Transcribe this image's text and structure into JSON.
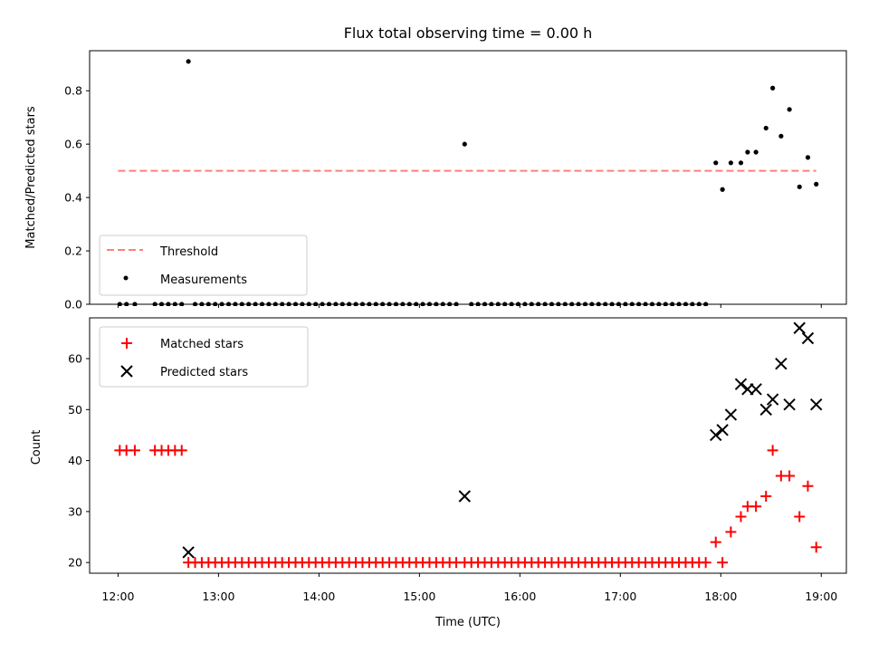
{
  "chart_data": [
    {
      "type": "scatter",
      "title": "Flux total observing time = 0.00 h",
      "xlabel": "",
      "ylabel": "Matched/Predicted stars",
      "xlim": [
        "11:43",
        "19:15"
      ],
      "ylim": [
        0,
        0.95
      ],
      "yticks": [
        0.0,
        0.2,
        0.4,
        0.6,
        0.8
      ],
      "ytick_labels": [
        "0.0",
        "0.2",
        "0.4",
        "0.6",
        "0.8"
      ],
      "xticks": [
        "12:00",
        "13:00",
        "14:00",
        "15:00",
        "16:00",
        "17:00",
        "18:00",
        "19:00"
      ],
      "legend": {
        "position": "lower-left"
      },
      "series": [
        {
          "name": "Threshold",
          "kind": "dashed-line",
          "color": "#ff7f7f",
          "x": [
            "12:00",
            "18:57"
          ],
          "y": [
            0.5,
            0.5
          ]
        },
        {
          "name": "Measurements",
          "kind": "dots",
          "color": "#000000",
          "points": [
            [
              "12:01",
              0
            ],
            [
              "12:05",
              0
            ],
            [
              "12:10",
              0
            ],
            [
              "12:22",
              0
            ],
            [
              "12:26",
              0
            ],
            [
              "12:30",
              0
            ],
            [
              "12:34",
              0
            ],
            [
              "12:38",
              0
            ],
            [
              "12:42",
              0.91
            ],
            [
              "12:46",
              0
            ],
            [
              "12:50",
              0
            ],
            [
              "12:54",
              0
            ],
            [
              "12:58",
              0
            ],
            [
              "13:02",
              0
            ],
            [
              "13:06",
              0
            ],
            [
              "13:10",
              0
            ],
            [
              "13:14",
              0
            ],
            [
              "13:18",
              0
            ],
            [
              "13:22",
              0
            ],
            [
              "13:26",
              0
            ],
            [
              "13:30",
              0
            ],
            [
              "13:34",
              0
            ],
            [
              "13:38",
              0
            ],
            [
              "13:42",
              0
            ],
            [
              "13:46",
              0
            ],
            [
              "13:50",
              0
            ],
            [
              "13:54",
              0
            ],
            [
              "13:58",
              0
            ],
            [
              "14:02",
              0
            ],
            [
              "14:06",
              0
            ],
            [
              "14:10",
              0
            ],
            [
              "14:14",
              0
            ],
            [
              "14:18",
              0
            ],
            [
              "14:22",
              0
            ],
            [
              "14:26",
              0
            ],
            [
              "14:30",
              0
            ],
            [
              "14:34",
              0
            ],
            [
              "14:38",
              0
            ],
            [
              "14:42",
              0
            ],
            [
              "14:46",
              0
            ],
            [
              "14:50",
              0
            ],
            [
              "14:54",
              0
            ],
            [
              "14:58",
              0
            ],
            [
              "15:02",
              0
            ],
            [
              "15:06",
              0
            ],
            [
              "15:10",
              0
            ],
            [
              "15:14",
              0
            ],
            [
              "15:18",
              0
            ],
            [
              "15:22",
              0
            ],
            [
              "15:27",
              0.6
            ],
            [
              "15:31",
              0
            ],
            [
              "15:35",
              0
            ],
            [
              "15:39",
              0
            ],
            [
              "15:43",
              0
            ],
            [
              "15:47",
              0
            ],
            [
              "15:51",
              0
            ],
            [
              "15:55",
              0
            ],
            [
              "15:59",
              0
            ],
            [
              "16:03",
              0
            ],
            [
              "16:07",
              0
            ],
            [
              "16:11",
              0
            ],
            [
              "16:15",
              0
            ],
            [
              "16:19",
              0
            ],
            [
              "16:23",
              0
            ],
            [
              "16:27",
              0
            ],
            [
              "16:31",
              0
            ],
            [
              "16:35",
              0
            ],
            [
              "16:39",
              0
            ],
            [
              "16:43",
              0
            ],
            [
              "16:47",
              0
            ],
            [
              "16:51",
              0
            ],
            [
              "16:55",
              0
            ],
            [
              "16:59",
              0
            ],
            [
              "17:03",
              0
            ],
            [
              "17:07",
              0
            ],
            [
              "17:11",
              0
            ],
            [
              "17:15",
              0
            ],
            [
              "17:19",
              0
            ],
            [
              "17:23",
              0
            ],
            [
              "17:27",
              0
            ],
            [
              "17:31",
              0
            ],
            [
              "17:35",
              0
            ],
            [
              "17:39",
              0
            ],
            [
              "17:43",
              0
            ],
            [
              "17:47",
              0
            ],
            [
              "17:51",
              0
            ],
            [
              "17:57",
              0.53
            ],
            [
              "18:01",
              0.43
            ],
            [
              "18:06",
              0.53
            ],
            [
              "18:12",
              0.53
            ],
            [
              "18:16",
              0.57
            ],
            [
              "18:21",
              0.57
            ],
            [
              "18:27",
              0.66
            ],
            [
              "18:31",
              0.81
            ],
            [
              "18:36",
              0.63
            ],
            [
              "18:41",
              0.73
            ],
            [
              "18:47",
              0.44
            ],
            [
              "18:52",
              0.55
            ],
            [
              "18:57",
              0.45
            ]
          ]
        }
      ]
    },
    {
      "type": "scatter",
      "title": "",
      "xlabel": "Time (UTC)",
      "ylabel": "Count",
      "xlim": [
        "11:43",
        "19:15"
      ],
      "ylim": [
        17.9,
        68
      ],
      "yticks": [
        20,
        30,
        40,
        50,
        60
      ],
      "ytick_labels": [
        "20",
        "30",
        "40",
        "50",
        "60"
      ],
      "xticks": [
        "12:00",
        "13:00",
        "14:00",
        "15:00",
        "16:00",
        "17:00",
        "18:00",
        "19:00"
      ],
      "legend": {
        "position": "upper-left"
      },
      "series": [
        {
          "name": "Matched stars",
          "kind": "plus",
          "color": "#ff0000",
          "points": [
            [
              "12:01",
              42
            ],
            [
              "12:05",
              42
            ],
            [
              "12:10",
              42
            ],
            [
              "12:22",
              42
            ],
            [
              "12:26",
              42
            ],
            [
              "12:30",
              42
            ],
            [
              "12:34",
              42
            ],
            [
              "12:38",
              42
            ],
            [
              "12:42",
              20
            ],
            [
              "12:46",
              20
            ],
            [
              "12:50",
              20
            ],
            [
              "12:54",
              20
            ],
            [
              "12:58",
              20
            ],
            [
              "13:02",
              20
            ],
            [
              "13:06",
              20
            ],
            [
              "13:10",
              20
            ],
            [
              "13:14",
              20
            ],
            [
              "13:18",
              20
            ],
            [
              "13:22",
              20
            ],
            [
              "13:26",
              20
            ],
            [
              "13:30",
              20
            ],
            [
              "13:34",
              20
            ],
            [
              "13:38",
              20
            ],
            [
              "13:42",
              20
            ],
            [
              "13:46",
              20
            ],
            [
              "13:50",
              20
            ],
            [
              "13:54",
              20
            ],
            [
              "13:58",
              20
            ],
            [
              "14:02",
              20
            ],
            [
              "14:06",
              20
            ],
            [
              "14:10",
              20
            ],
            [
              "14:14",
              20
            ],
            [
              "14:18",
              20
            ],
            [
              "14:22",
              20
            ],
            [
              "14:26",
              20
            ],
            [
              "14:30",
              20
            ],
            [
              "14:34",
              20
            ],
            [
              "14:38",
              20
            ],
            [
              "14:42",
              20
            ],
            [
              "14:46",
              20
            ],
            [
              "14:50",
              20
            ],
            [
              "14:54",
              20
            ],
            [
              "14:58",
              20
            ],
            [
              "15:02",
              20
            ],
            [
              "15:06",
              20
            ],
            [
              "15:10",
              20
            ],
            [
              "15:14",
              20
            ],
            [
              "15:18",
              20
            ],
            [
              "15:22",
              20
            ],
            [
              "15:27",
              20
            ],
            [
              "15:31",
              20
            ],
            [
              "15:35",
              20
            ],
            [
              "15:39",
              20
            ],
            [
              "15:43",
              20
            ],
            [
              "15:47",
              20
            ],
            [
              "15:51",
              20
            ],
            [
              "15:55",
              20
            ],
            [
              "15:59",
              20
            ],
            [
              "16:03",
              20
            ],
            [
              "16:07",
              20
            ],
            [
              "16:11",
              20
            ],
            [
              "16:15",
              20
            ],
            [
              "16:19",
              20
            ],
            [
              "16:23",
              20
            ],
            [
              "16:27",
              20
            ],
            [
              "16:31",
              20
            ],
            [
              "16:35",
              20
            ],
            [
              "16:39",
              20
            ],
            [
              "16:43",
              20
            ],
            [
              "16:47",
              20
            ],
            [
              "16:51",
              20
            ],
            [
              "16:55",
              20
            ],
            [
              "16:59",
              20
            ],
            [
              "17:03",
              20
            ],
            [
              "17:07",
              20
            ],
            [
              "17:11",
              20
            ],
            [
              "17:15",
              20
            ],
            [
              "17:19",
              20
            ],
            [
              "17:23",
              20
            ],
            [
              "17:27",
              20
            ],
            [
              "17:31",
              20
            ],
            [
              "17:35",
              20
            ],
            [
              "17:39",
              20
            ],
            [
              "17:43",
              20
            ],
            [
              "17:47",
              20
            ],
            [
              "17:51",
              20
            ],
            [
              "17:57",
              24
            ],
            [
              "18:01",
              20
            ],
            [
              "18:06",
              26
            ],
            [
              "18:12",
              29
            ],
            [
              "18:16",
              31
            ],
            [
              "18:21",
              31
            ],
            [
              "18:27",
              33
            ],
            [
              "18:31",
              42
            ],
            [
              "18:36",
              37
            ],
            [
              "18:41",
              37
            ],
            [
              "18:47",
              29
            ],
            [
              "18:52",
              35
            ],
            [
              "18:57",
              23
            ]
          ]
        },
        {
          "name": "Predicted stars",
          "kind": "x",
          "color": "#000000",
          "points": [
            [
              "12:42",
              22
            ],
            [
              "15:27",
              33
            ],
            [
              "17:57",
              45
            ],
            [
              "18:01",
              46
            ],
            [
              "18:06",
              49
            ],
            [
              "18:12",
              55
            ],
            [
              "18:16",
              54
            ],
            [
              "18:21",
              54
            ],
            [
              "18:27",
              50
            ],
            [
              "18:31",
              52
            ],
            [
              "18:36",
              59
            ],
            [
              "18:41",
              51
            ],
            [
              "18:47",
              66
            ],
            [
              "18:52",
              64
            ],
            [
              "18:57",
              51
            ]
          ]
        }
      ]
    }
  ]
}
